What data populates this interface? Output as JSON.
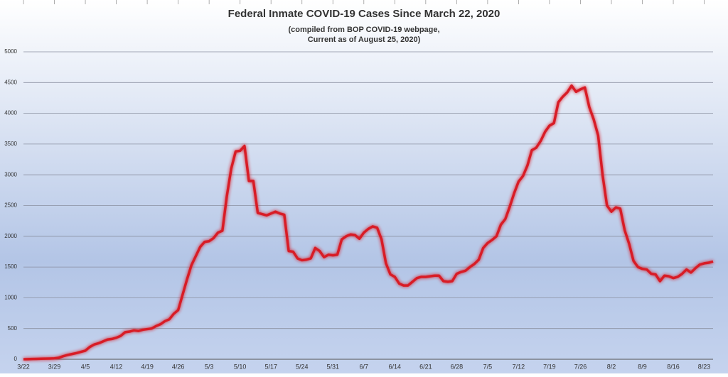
{
  "chart_data": {
    "type": "line",
    "title": "Federal Inmate COVID-19 Cases Since March 22, 2020",
    "subtitle": [
      "(compiled from BOP COVID-19 webpage,",
      "Current as of August 25, 2020)"
    ],
    "categories": [
      "3/22",
      null,
      null,
      null,
      null,
      null,
      null,
      "3/29",
      null,
      null,
      null,
      null,
      null,
      null,
      "4/5",
      null,
      null,
      null,
      null,
      null,
      null,
      "4/12",
      null,
      null,
      null,
      null,
      null,
      null,
      "4/19",
      null,
      null,
      null,
      null,
      null,
      null,
      "4/26",
      null,
      null,
      null,
      null,
      null,
      null,
      "5/3",
      null,
      null,
      null,
      null,
      null,
      null,
      "5/10",
      null,
      null,
      null,
      null,
      null,
      null,
      "5/17",
      null,
      null,
      null,
      null,
      null,
      null,
      "5/24",
      null,
      null,
      null,
      null,
      null,
      null,
      "5/31",
      null,
      null,
      null,
      null,
      null,
      null,
      "6/7",
      null,
      null,
      null,
      null,
      null,
      null,
      "6/14",
      null,
      null,
      null,
      null,
      null,
      null,
      "6/21",
      null,
      null,
      null,
      null,
      null,
      null,
      "6/28",
      null,
      null,
      null,
      null,
      null,
      null,
      "7/5",
      null,
      null,
      null,
      null,
      null,
      null,
      "7/12",
      null,
      null,
      null,
      null,
      null,
      null,
      "7/19",
      null,
      null,
      null,
      null,
      null,
      null,
      "7/26",
      null,
      null,
      null,
      null,
      null,
      null,
      "8/2",
      null,
      null,
      null,
      null,
      null,
      null,
      "8/9",
      null,
      null,
      null,
      null,
      null,
      null,
      "8/16",
      null,
      null,
      null,
      null,
      null,
      null,
      "8/23",
      null,
      null
    ],
    "series": [
      {
        "name": "Cases",
        "color": "#d81f26",
        "values": [
          0,
          2,
          4,
          6,
          8,
          10,
          12,
          14,
          25,
          50,
          70,
          85,
          100,
          120,
          140,
          200,
          240,
          260,
          290,
          320,
          330,
          350,
          380,
          440,
          450,
          470,
          460,
          480,
          490,
          500,
          540,
          570,
          620,
          650,
          740,
          800,
          1050,
          1300,
          1530,
          1680,
          1830,
          1910,
          1920,
          1970,
          2060,
          2090,
          2650,
          3100,
          3380,
          3390,
          3470,
          2900,
          2900,
          2380,
          2360,
          2340,
          2370,
          2400,
          2370,
          2350,
          1760,
          1750,
          1640,
          1610,
          1620,
          1640,
          1810,
          1760,
          1660,
          1700,
          1690,
          1700,
          1950,
          2000,
          2030,
          2020,
          1960,
          2060,
          2120,
          2160,
          2140,
          1950,
          1560,
          1380,
          1340,
          1230,
          1200,
          1200,
          1260,
          1320,
          1340,
          1340,
          1350,
          1360,
          1360,
          1270,
          1260,
          1270,
          1390,
          1420,
          1440,
          1500,
          1550,
          1620,
          1810,
          1890,
          1940,
          2000,
          2190,
          2280,
          2480,
          2700,
          2890,
          2980,
          3150,
          3400,
          3440,
          3550,
          3700,
          3800,
          3840,
          4180,
          4270,
          4340,
          4450,
          4350,
          4390,
          4420,
          4100,
          3900,
          3640,
          3000,
          2500,
          2400,
          2470,
          2450,
          2100,
          1880,
          1600,
          1500,
          1470,
          1460,
          1390,
          1380,
          1270,
          1360,
          1350,
          1320,
          1340,
          1390,
          1460,
          1410,
          1480,
          1540,
          1560,
          1570,
          1590
        ]
      }
    ],
    "ylim": [
      0,
      5000
    ],
    "yticks": [
      0,
      500,
      1000,
      1500,
      2000,
      2500,
      3000,
      3500,
      4000,
      4500,
      5000
    ],
    "grid": true
  }
}
